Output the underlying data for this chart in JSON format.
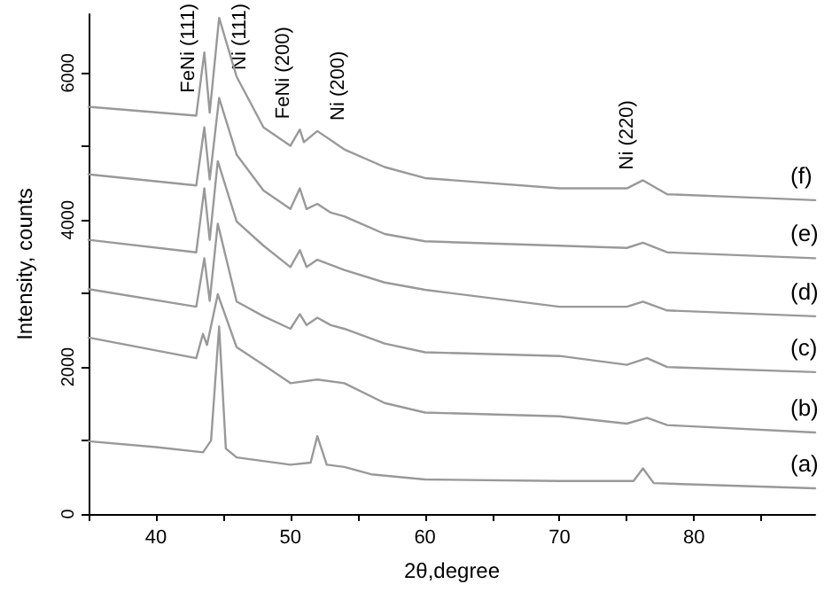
{
  "chart_data": {
    "type": "line",
    "xlabel": "2θ,degree",
    "ylabel": "Intensity, counts",
    "xlim": [
      35,
      89
    ],
    "ylim": [
      0,
      6800
    ],
    "xticks": [
      {
        "value": 35,
        "label": null
      },
      40,
      {
        "value": 45,
        "label": null
      },
      50,
      {
        "value": 55,
        "label": null
      },
      60,
      {
        "value": 65,
        "label": null
      },
      70,
      {
        "value": 75,
        "label": null
      },
      80,
      {
        "value": 85,
        "label": null
      }
    ],
    "yticks": [
      0,
      {
        "value": 1000,
        "label": null
      },
      2000,
      {
        "value": 3000,
        "label": null
      },
      4000,
      {
        "value": 5000,
        "label": null
      },
      6000
    ],
    "grid": false,
    "legend": false,
    "marker": "none",
    "line_style": "solid",
    "annotations": [
      {
        "text": "FeNi (111)",
        "x": 43.6,
        "y": 6280
      },
      {
        "text": "Ni (111)",
        "x": 44.7,
        "y": 6750
      },
      {
        "text": "FeNi (200)",
        "x": 50.7,
        "y": 5230
      },
      {
        "text": "Ni (200)",
        "x": 52,
        "y": 5210
      },
      {
        "text": "Ni (220)",
        "x": 76.2,
        "y": 4540
      }
    ],
    "series": [
      {
        "name": "(a)",
        "color": "#999999",
        "x": [
          35,
          40,
          43.5,
          44.1,
          44.7,
          45.2,
          46,
          50,
          51.5,
          52,
          52.7,
          54,
          56,
          60,
          70,
          75.5,
          76.2,
          77,
          89
        ],
        "values": [
          990,
          910,
          840,
          1000,
          2550,
          890,
          770,
          670,
          700,
          1060,
          670,
          640,
          540,
          470,
          450,
          450,
          620,
          420,
          350
        ]
      },
      {
        "name": "(b)",
        "color": "#999999",
        "x": [
          35,
          43,
          43.5,
          43.8,
          44.6,
          46,
          48,
          50,
          52,
          54,
          57,
          60,
          70,
          75,
          76.5,
          78,
          89
        ],
        "values": [
          2400,
          2120,
          2450,
          2300,
          2990,
          2270,
          2030,
          1780,
          1830,
          1780,
          1510,
          1380,
          1330,
          1230,
          1310,
          1210,
          1110
        ]
      },
      {
        "name": "(c)",
        "color": "#999999",
        "x": [
          35,
          43,
          43.6,
          44,
          44.6,
          46,
          48,
          50,
          50.7,
          51.2,
          52,
          53,
          54,
          57,
          60,
          70,
          75,
          76.5,
          78,
          89
        ],
        "values": [
          3060,
          2820,
          3480,
          2900,
          3950,
          2890,
          2690,
          2520,
          2720,
          2570,
          2670,
          2570,
          2520,
          2320,
          2200,
          2150,
          2030,
          2120,
          2000,
          1930
        ]
      },
      {
        "name": "(d)",
        "color": "#999999",
        "x": [
          35,
          43,
          43.6,
          44,
          44.6,
          46,
          48,
          50,
          50.7,
          51.2,
          52,
          54,
          57,
          60,
          70,
          75,
          76.2,
          78,
          89
        ],
        "values": [
          3730,
          3560,
          4430,
          3730,
          4800,
          3980,
          3650,
          3360,
          3590,
          3360,
          3460,
          3320,
          3150,
          3050,
          2820,
          2820,
          2890,
          2770,
          2690
        ]
      },
      {
        "name": "(e)",
        "color": "#999999",
        "x": [
          35,
          43,
          43.6,
          44,
          44.7,
          46,
          48,
          50,
          50.7,
          51.2,
          52,
          53,
          54,
          57,
          60,
          70,
          75,
          76.2,
          78,
          89
        ],
        "values": [
          4620,
          4470,
          5260,
          4550,
          5660,
          4890,
          4400,
          4150,
          4430,
          4150,
          4220,
          4100,
          4050,
          3810,
          3710,
          3650,
          3620,
          3690,
          3560,
          3480
        ]
      },
      {
        "name": "(f)",
        "color": "#999999",
        "x": [
          35,
          43,
          43.6,
          44,
          44.7,
          46,
          48,
          50,
          50.7,
          51,
          52,
          54,
          57,
          60,
          70,
          75,
          76.2,
          78,
          85,
          89
        ],
        "values": [
          5540,
          5420,
          6280,
          5460,
          6750,
          5950,
          5260,
          5010,
          5230,
          5060,
          5210,
          4960,
          4720,
          4570,
          4430,
          4430,
          4540,
          4350,
          4300,
          4270
        ]
      }
    ]
  }
}
